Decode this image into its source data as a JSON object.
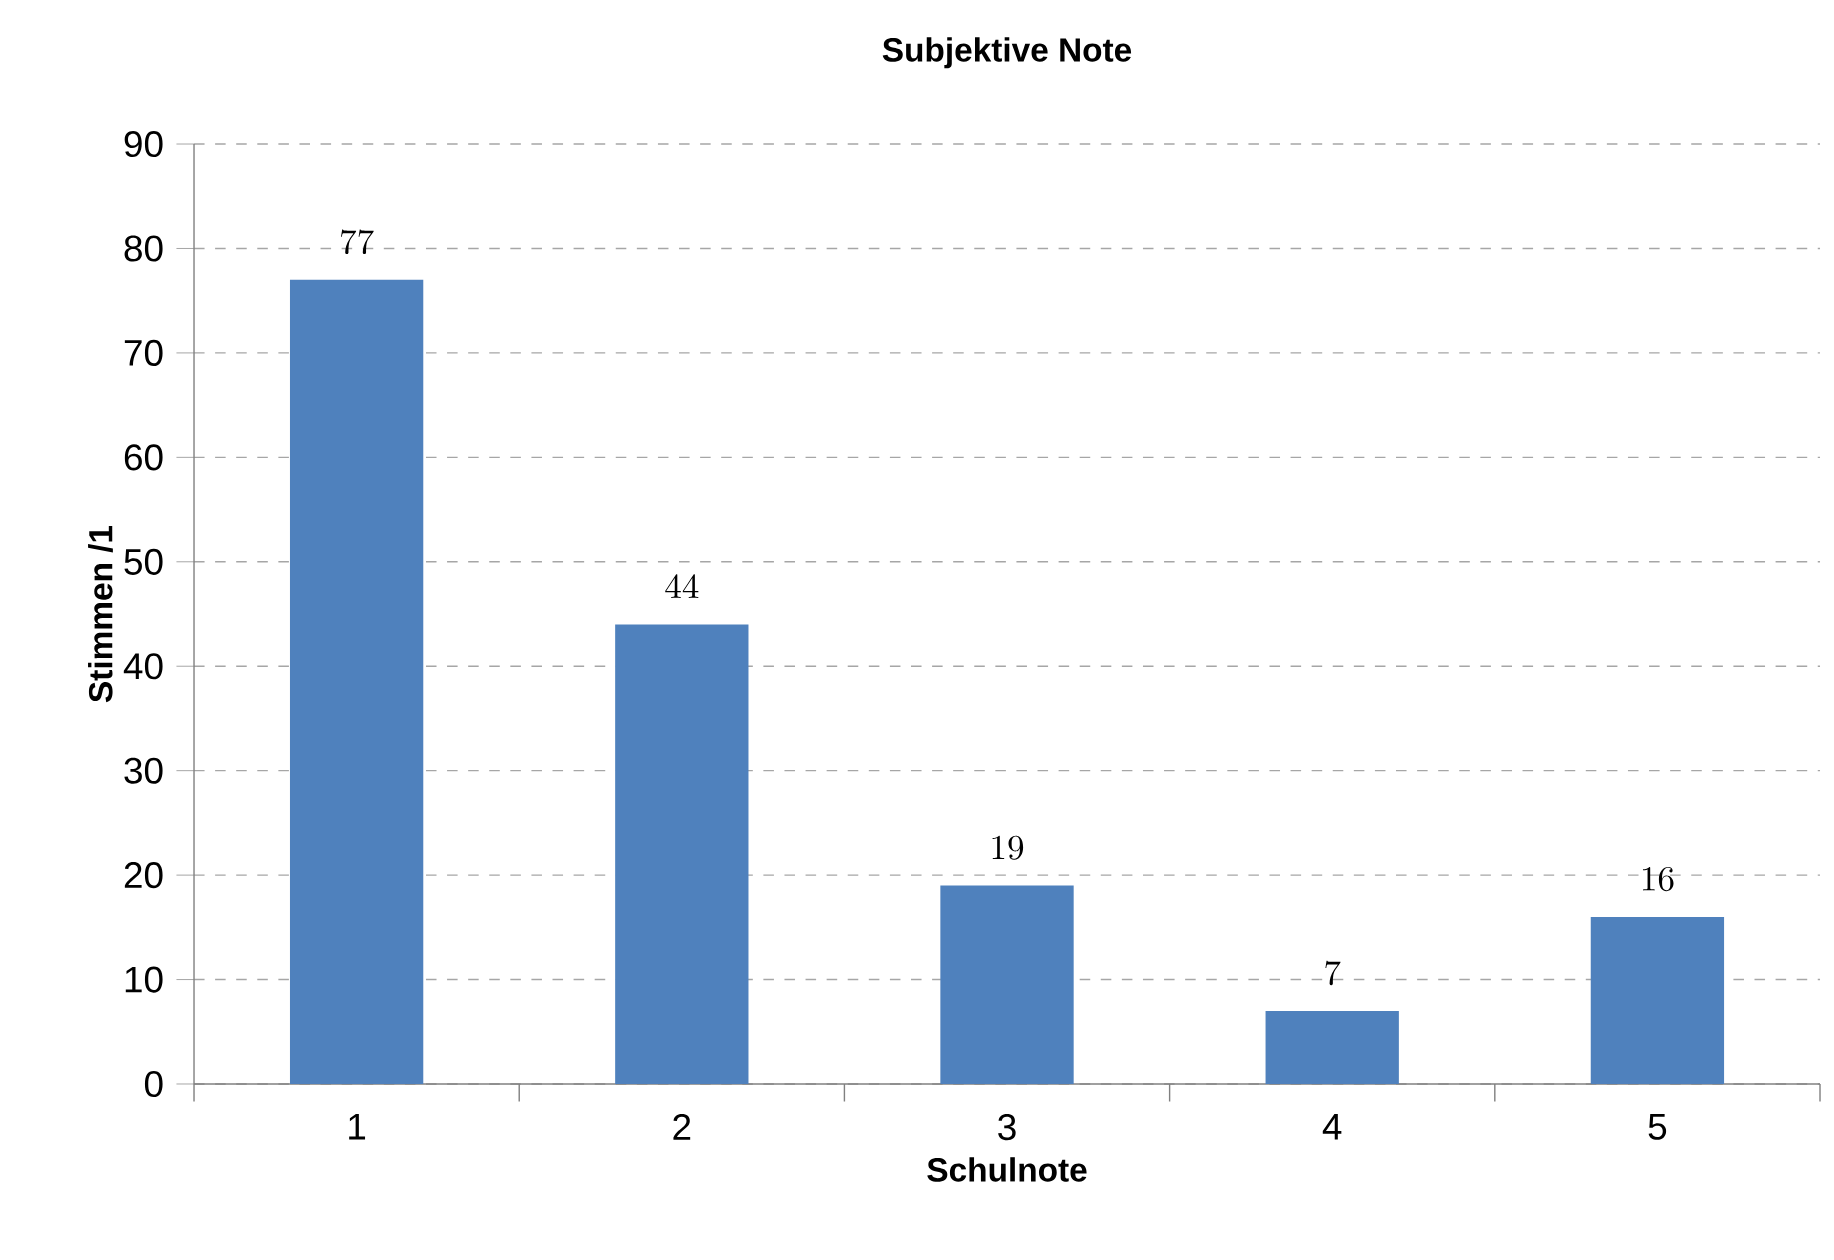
{
  "chart_data": {
    "type": "bar",
    "title": "Subjektive Note",
    "xlabel": "Schulnote",
    "ylabel": "Stimmen /1",
    "categories": [
      "1",
      "2",
      "3",
      "4",
      "5"
    ],
    "values": [
      77,
      44,
      19,
      7,
      16
    ],
    "color": "#4f81bd",
    "ylim": [
      0,
      90
    ],
    "yticks": [
      0,
      10,
      20,
      30,
      40,
      50,
      60,
      70,
      80,
      90
    ],
    "grid": "y",
    "data_labels": true
  }
}
